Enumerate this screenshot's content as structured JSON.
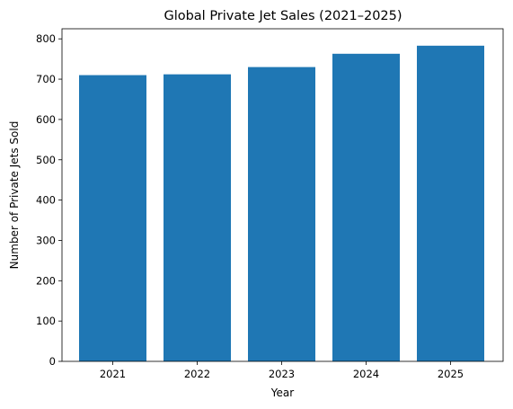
{
  "chart_data": {
    "type": "bar",
    "title": "Global Private Jet Sales (2021–2025)",
    "xlabel": "Year",
    "ylabel": "Number of Private Jets Sold",
    "categories": [
      "2021",
      "2022",
      "2023",
      "2024",
      "2025"
    ],
    "values": [
      710,
      712,
      730,
      763,
      783
    ],
    "ylim": [
      0,
      825
    ],
    "yticks": [
      0,
      100,
      200,
      300,
      400,
      500,
      600,
      700,
      800
    ],
    "bar_color": "#1f77b4",
    "grid": false,
    "legend": "none"
  }
}
